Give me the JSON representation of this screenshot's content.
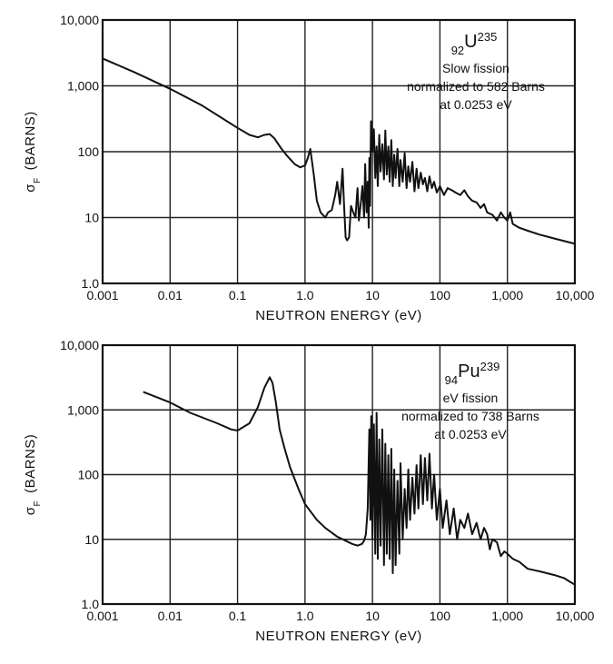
{
  "chart_data": [
    {
      "type": "line",
      "xscale": "log",
      "yscale": "log",
      "xlim": [
        0.001,
        10000
      ],
      "ylim": [
        1,
        10000
      ],
      "grid": true,
      "xlabel": "NEUTRON ENERGY (eV)",
      "ylabel_symbol": "σ",
      "ylabel_sub": "F",
      "ylabel_text": "(BARNS)",
      "xticks": [
        "0.001",
        "0.01",
        "0.1",
        "1.0",
        "10",
        "100",
        "1,000",
        "10,000"
      ],
      "yticks": [
        "1.0",
        "10",
        "100",
        "1,000",
        "10,000"
      ],
      "isotope": {
        "pre": "92",
        "base": "U",
        "sup": "235"
      },
      "annotations": [
        "Slow fission",
        "normalized to 582 Barns",
        "at 0.0253 eV"
      ],
      "series": [
        {
          "x": [
            0.001,
            0.003,
            0.01,
            0.03,
            0.1,
            0.15,
            0.2,
            0.25,
            0.3,
            0.35,
            0.45,
            0.55,
            0.7,
            0.85,
            1.0,
            1.1,
            1.2,
            1.35,
            1.5,
            1.7,
            2.0,
            2.2,
            2.5,
            2.8,
            3.0,
            3.3,
            3.6,
            3.8,
            4.0,
            4.2,
            4.5,
            4.8,
            5.2,
            5.6,
            6.0,
            6.3,
            6.7,
            7.1,
            7.5,
            7.8,
            8.2,
            8.5,
            8.8,
            9.0,
            9.2,
            9.5,
            10,
            10.5,
            11,
            11.5,
            12,
            12.6,
            13.2,
            14,
            14.8,
            15.5,
            16.3,
            17.2,
            18,
            19,
            20,
            21,
            22,
            23.5,
            25,
            26,
            28,
            30,
            32,
            34,
            36,
            39,
            42,
            45,
            48,
            52,
            56,
            60,
            65,
            70,
            76,
            82,
            90,
            100,
            115,
            130,
            150,
            170,
            200,
            230,
            260,
            300,
            350,
            400,
            450,
            500,
            600,
            700,
            800,
            900,
            1000,
            1100,
            1200,
            1500,
            2000,
            3000,
            5000,
            10000
          ],
          "y": [
            2600,
            1600,
            900,
            500,
            230,
            180,
            165,
            180,
            185,
            160,
            110,
            85,
            65,
            58,
            62,
            80,
            110,
            45,
            18,
            12,
            10,
            12,
            13,
            22,
            35,
            16,
            55,
            15,
            5,
            4.5,
            5,
            15,
            12,
            10,
            28,
            9,
            16,
            30,
            10,
            65,
            12,
            35,
            7,
            80,
            15,
            290,
            100,
            220,
            40,
            120,
            30,
            180,
            50,
            130,
            38,
            210,
            45,
            120,
            35,
            150,
            30,
            90,
            40,
            110,
            30,
            75,
            35,
            95,
            28,
            60,
            35,
            70,
            25,
            55,
            28,
            48,
            32,
            40,
            25,
            42,
            28,
            35,
            24,
            30,
            22,
            28,
            26,
            24,
            22,
            26,
            21,
            18,
            17,
            14,
            16,
            12,
            11,
            9,
            12,
            10,
            9,
            12,
            8,
            7,
            6.3,
            5.5,
            4.8,
            4
          ]
        }
      ]
    },
    {
      "type": "line",
      "xscale": "log",
      "yscale": "log",
      "xlim": [
        0.001,
        10000
      ],
      "ylim": [
        1,
        10000
      ],
      "grid": true,
      "xlabel": "NEUTRON ENERGY (eV)",
      "ylabel_symbol": "σ",
      "ylabel_sub": "F",
      "ylabel_text": "(BARNS)",
      "xticks": [
        "0.001",
        "0.01",
        "0.1",
        "1.0",
        "10",
        "100",
        "1,000",
        "10,000"
      ],
      "yticks": [
        "1.0",
        "10",
        "100",
        "1,000",
        "10,000"
      ],
      "isotope": {
        "pre": "94",
        "base": "Pu",
        "sup": "239"
      },
      "annotations": [
        "eV fission",
        "normalized to 738 Barns",
        "at 0.0253 eV"
      ],
      "series": [
        {
          "x": [
            0.004,
            0.01,
            0.02,
            0.05,
            0.08,
            0.1,
            0.15,
            0.2,
            0.25,
            0.3,
            0.33,
            0.37,
            0.42,
            0.5,
            0.6,
            0.8,
            1.0,
            1.5,
            2,
            3,
            4,
            5,
            6,
            7,
            7.5,
            8,
            8.5,
            9,
            9.3,
            9.6,
            10,
            10.5,
            11,
            11.5,
            12,
            12.6,
            13.2,
            14,
            14.8,
            15.5,
            16.3,
            17.2,
            18,
            19,
            20,
            21,
            22,
            23.5,
            25,
            26,
            28,
            30,
            32,
            34,
            36,
            39,
            42,
            45,
            48,
            52,
            56,
            60,
            65,
            70,
            76,
            82,
            90,
            100,
            110,
            125,
            140,
            160,
            180,
            200,
            230,
            260,
            300,
            350,
            400,
            450,
            500,
            550,
            600,
            700,
            800,
            900,
            1000,
            1200,
            1500,
            2000,
            3000,
            5000,
            7000,
            8500,
            10000
          ],
          "y": [
            1900,
            1300,
            900,
            620,
            500,
            480,
            620,
            1100,
            2200,
            3200,
            2600,
            1300,
            500,
            250,
            130,
            60,
            35,
            20,
            15,
            11,
            9.5,
            8.5,
            8,
            8.5,
            9.5,
            12,
            30,
            500,
            20,
            800,
            10,
            600,
            6,
            900,
            5,
            350,
            8,
            500,
            4,
            300,
            6,
            200,
            5,
            250,
            3,
            120,
            4,
            80,
            6,
            150,
            10,
            60,
            15,
            120,
            20,
            90,
            25,
            140,
            30,
            200,
            35,
            180,
            40,
            210,
            30,
            100,
            20,
            60,
            15,
            40,
            12,
            30,
            10,
            20,
            15,
            25,
            12,
            18,
            10,
            15,
            12,
            7,
            10,
            9,
            5.5,
            6.5,
            6,
            5,
            4.5,
            3.5,
            3.2,
            2.8,
            2.5,
            2.2,
            2
          ]
        }
      ]
    }
  ]
}
